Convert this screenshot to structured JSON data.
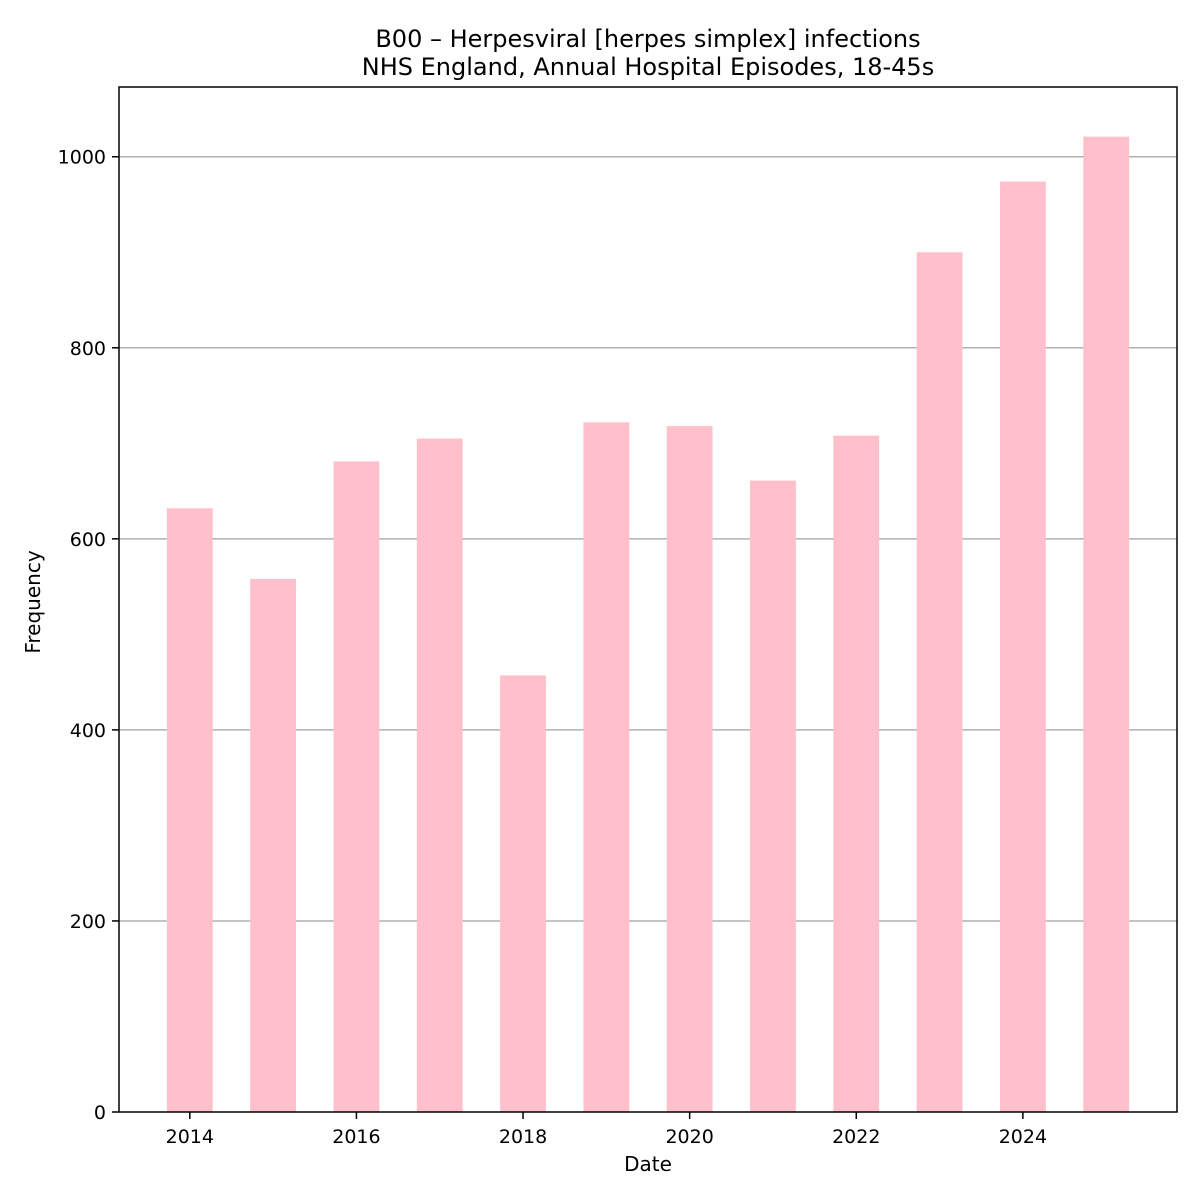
{
  "chart_data": {
    "type": "bar",
    "title": "B00 – Herpesviral [herpes simplex] infections",
    "subtitle": "NHS England, Annual Hospital Episodes, 18-45s",
    "xlabel": "Date",
    "ylabel": "Frequency",
    "x": [
      2014,
      2015,
      2016,
      2017,
      2018,
      2019,
      2020,
      2021,
      2022,
      2023,
      2024,
      2025
    ],
    "values": [
      632,
      558,
      681,
      705,
      457,
      722,
      718,
      661,
      708,
      900,
      974,
      1021
    ],
    "xlim": [
      2013.15,
      2025.85
    ],
    "ylim": [
      0,
      1073
    ],
    "xticks": [
      2014,
      2016,
      2018,
      2020,
      2022,
      2024
    ],
    "yticks": [
      0,
      200,
      400,
      600,
      800,
      1000
    ],
    "grid": "horizontal",
    "bar_color": "#ffc0cb"
  }
}
